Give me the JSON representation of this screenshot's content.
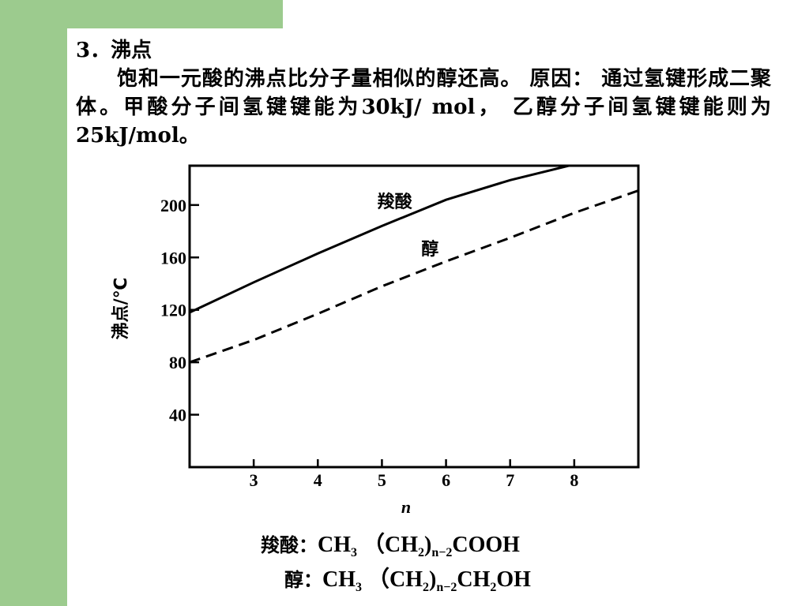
{
  "slide": {
    "heading": "3．沸点",
    "paragraph": "饱和一元酸的沸点比分子量相似的醇还高。 原因： 通过氢键形成二聚体。甲酸分子间氢键键能为30kJ/ mol， 乙醇分子间氢键键能则为25kJ/mol。"
  },
  "chart_data": {
    "type": "line",
    "title": "",
    "xlabel": "n",
    "ylabel": "沸点/℃",
    "x_ticks": [
      3,
      4,
      5,
      6,
      7,
      8
    ],
    "y_ticks": [
      40,
      80,
      120,
      160,
      200
    ],
    "xlim": [
      2,
      9
    ],
    "ylim": [
      0,
      230
    ],
    "grid": false,
    "series": [
      {
        "name": "羧酸",
        "style": "solid",
        "x": [
          2,
          3,
          4,
          5,
          6,
          7,
          8,
          8.3
        ],
        "y": [
          118,
          141,
          163,
          184,
          204,
          219,
          231,
          233
        ]
      },
      {
        "name": "醇",
        "style": "dashed",
        "x": [
          2,
          3,
          4,
          5,
          6,
          7,
          8,
          9
        ],
        "y": [
          80,
          97,
          117,
          138,
          157,
          175,
          194,
          211
        ]
      }
    ]
  },
  "formulas": {
    "acid": {
      "name": "羧酸：",
      "p1": "CH",
      "s1": "3",
      "p2": " （CH",
      "s2": "2",
      "p3": ")",
      "s3": "n−2",
      "p4": "COOH"
    },
    "alcohol": {
      "name": "醇：",
      "p1": "CH",
      "s1": "3",
      "p2": " （CH",
      "s2": "2",
      "p3": ")",
      "s3": "n−2",
      "p4": "CH",
      "s4": "2",
      "p5": "OH"
    }
  }
}
